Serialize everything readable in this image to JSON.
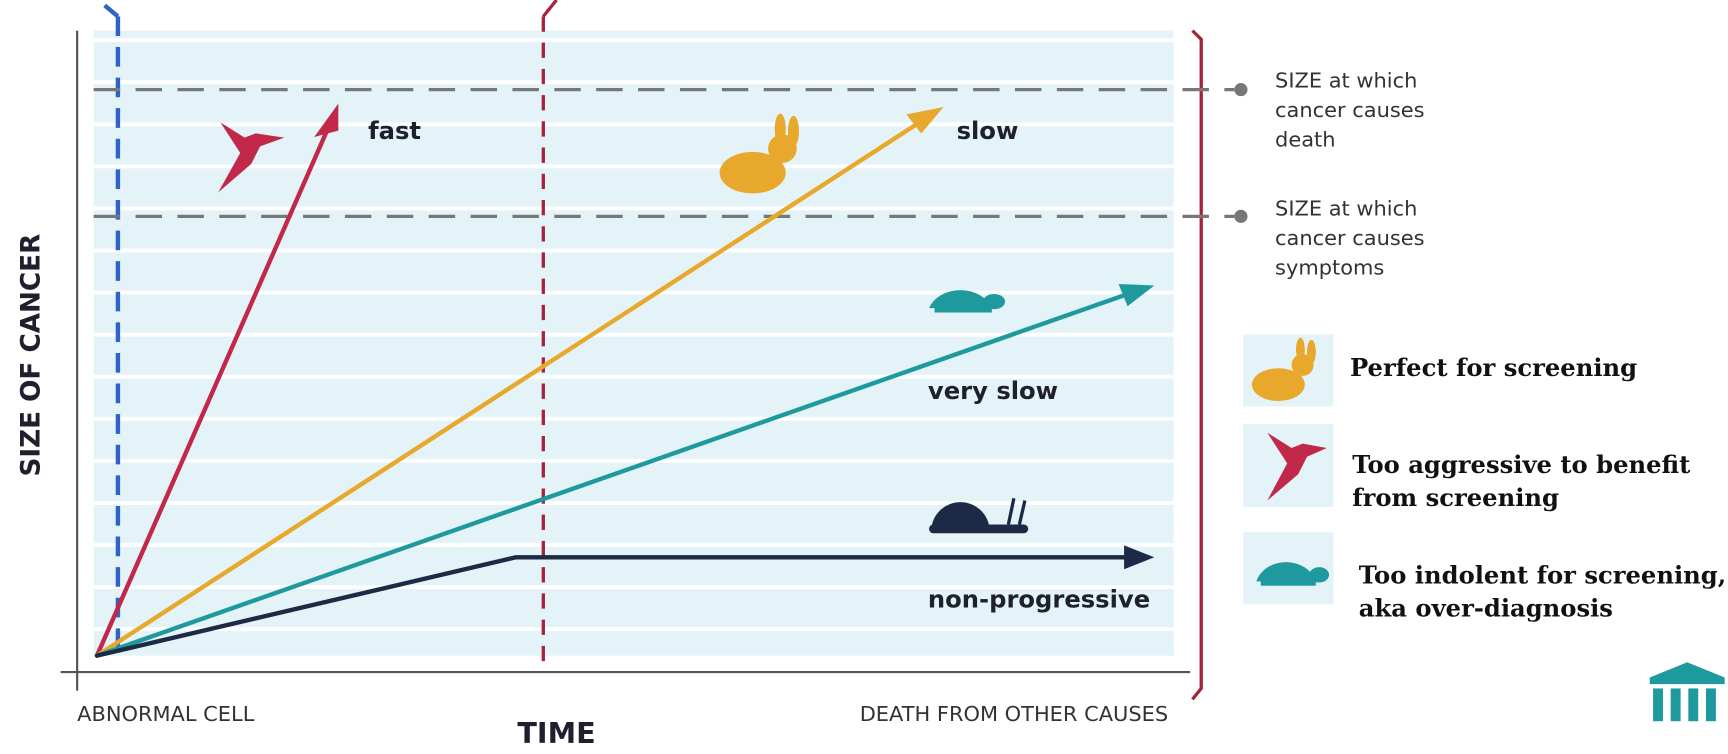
{
  "diagram": {
    "y_axis_label": "SIZE OF CANCER",
    "x_axis_label": "TIME",
    "x_start_label": "ABNORMAL CELL",
    "x_end_label": "DEATH FROM OTHER CAUSES",
    "curves": [
      "fast",
      "slow",
      "very slow",
      "non-progressive"
    ],
    "thresholds": [
      {
        "lines": [
          "SIZE at which",
          "cancer causes",
          "death"
        ]
      },
      {
        "lines": [
          "SIZE at which",
          "cancer causes",
          "symptoms"
        ]
      }
    ],
    "legend": [
      {
        "lines": [
          "Perfect for screening"
        ]
      },
      {
        "lines": [
          "Too aggressive to benefit",
          "from screening"
        ]
      },
      {
        "lines": [
          "Too indolent for screening,",
          "aka over-diagnosis"
        ]
      }
    ]
  }
}
